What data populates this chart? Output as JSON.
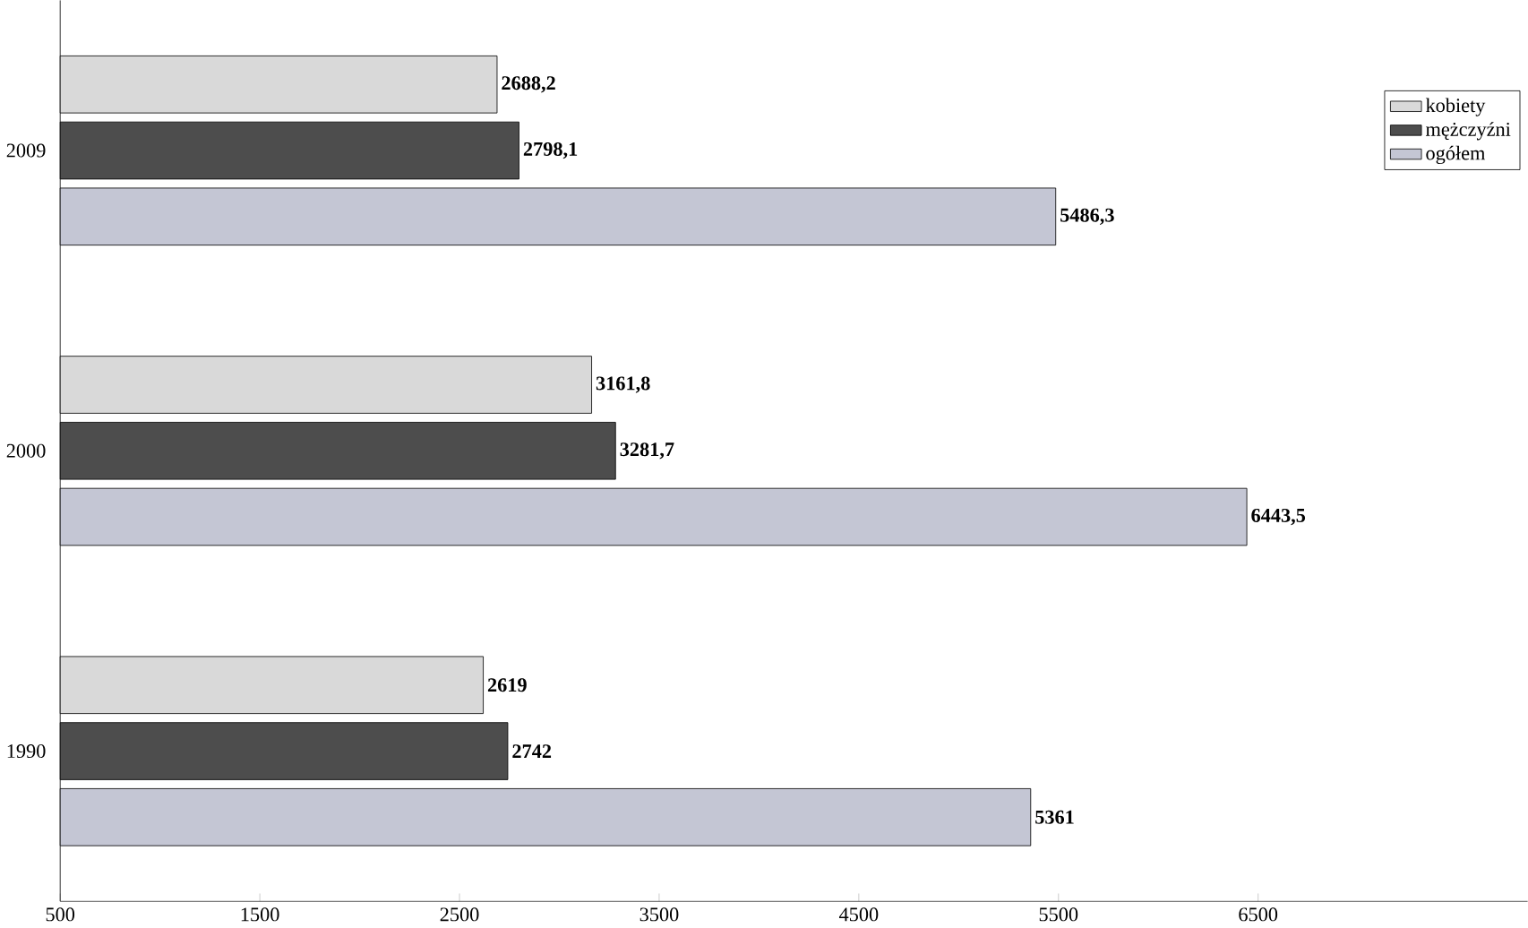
{
  "chart_data": {
    "type": "bar",
    "orientation": "horizontal",
    "categories": [
      "2009",
      "2000",
      "1990"
    ],
    "series": [
      {
        "name": "kobiety",
        "color": "#d9d9d9",
        "values": [
          2688.2,
          3161.8,
          2619
        ],
        "value_labels": [
          "2688,2",
          "3161,8",
          "2619"
        ]
      },
      {
        "name": "mężczyźni",
        "color": "#4d4d4d",
        "values": [
          2798.1,
          3281.7,
          2742
        ],
        "value_labels": [
          "2798,1",
          "3281,7",
          "2742"
        ]
      },
      {
        "name": "ogółem",
        "color": "#c4c6d4",
        "values": [
          5486.3,
          6443.5,
          5361
        ],
        "value_labels": [
          "5486,3",
          "6443,5",
          "5361"
        ]
      }
    ],
    "xlim": [
      500,
      7850
    ],
    "xticks": [
      500,
      1500,
      2500,
      3500,
      4500,
      5500,
      6500
    ],
    "legend": "top right",
    "grid": false
  }
}
